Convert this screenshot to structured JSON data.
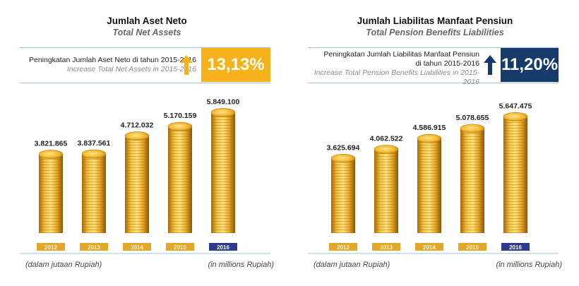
{
  "colors": {
    "gold": "#f5b21b",
    "navy": "#163a6a",
    "label_highlight": "#2b3b8f"
  },
  "panels": [
    {
      "title": "Jumlah Aset Neto",
      "subtitle": "Total Net Assets",
      "highlight": {
        "line1": "Peningkatan Jumlah Aset Neto di tahun 2015-2016",
        "line2": "Increase Total Net Assets in 2015-2016",
        "line1b": "",
        "percent": "13,13%",
        "arrow_icon": "arrow-up-icon",
        "arrow_color": "#f5b21b"
      },
      "footer_left": "(dalam jutaan Rupiah)",
      "footer_right": "(in millions Rupiah)"
    },
    {
      "title": "Jumlah Liabilitas Manfaat Pensiun",
      "subtitle": "Total Pension Benefits Liabilities",
      "highlight": {
        "line1": "Peningkatan Jumlah Liabilitas Manfaat Pensiun",
        "line1b": "di tahun 2015-2016",
        "line2": "Increase Total Pension Benefits Liabilities in 2015-2016",
        "percent": "11,20%",
        "arrow_icon": "arrow-up-icon",
        "arrow_color": "#163a6a"
      },
      "footer_left": "(dalam jutaan Rupiah)",
      "footer_right": "(in millions Rupiah)"
    }
  ],
  "chart_data": [
    {
      "type": "bar",
      "title": "Jumlah Aset Neto",
      "subtitle": "Total Net Assets",
      "categories": [
        "2012",
        "2013",
        "2014",
        "2015",
        "2016"
      ],
      "values": [
        3821865,
        3837561,
        4712032,
        5170159,
        5849100
      ],
      "value_labels": [
        "3.821.865",
        "3.837.561",
        "4.712.032",
        "5.170.159",
        "5.849.100"
      ],
      "highlight_category": "2016",
      "ylabel": "",
      "xlabel": "",
      "grid": false,
      "ylim": [
        0,
        6000000
      ]
    },
    {
      "type": "bar",
      "title": "Jumlah Liabilitas Manfaat Pensiun",
      "subtitle": "Total Pension Benefits Liabilities",
      "categories": [
        "2012",
        "2013",
        "2014",
        "2015",
        "2016"
      ],
      "values": [
        3625694,
        4062522,
        4586915,
        5078655,
        5647475
      ],
      "value_labels": [
        "3.625.694",
        "4.062.522",
        "4.586.915",
        "5.078.655",
        "5.647.475"
      ],
      "highlight_category": "2016",
      "ylabel": "",
      "xlabel": "",
      "grid": false,
      "ylim": [
        0,
        6000000
      ]
    }
  ]
}
